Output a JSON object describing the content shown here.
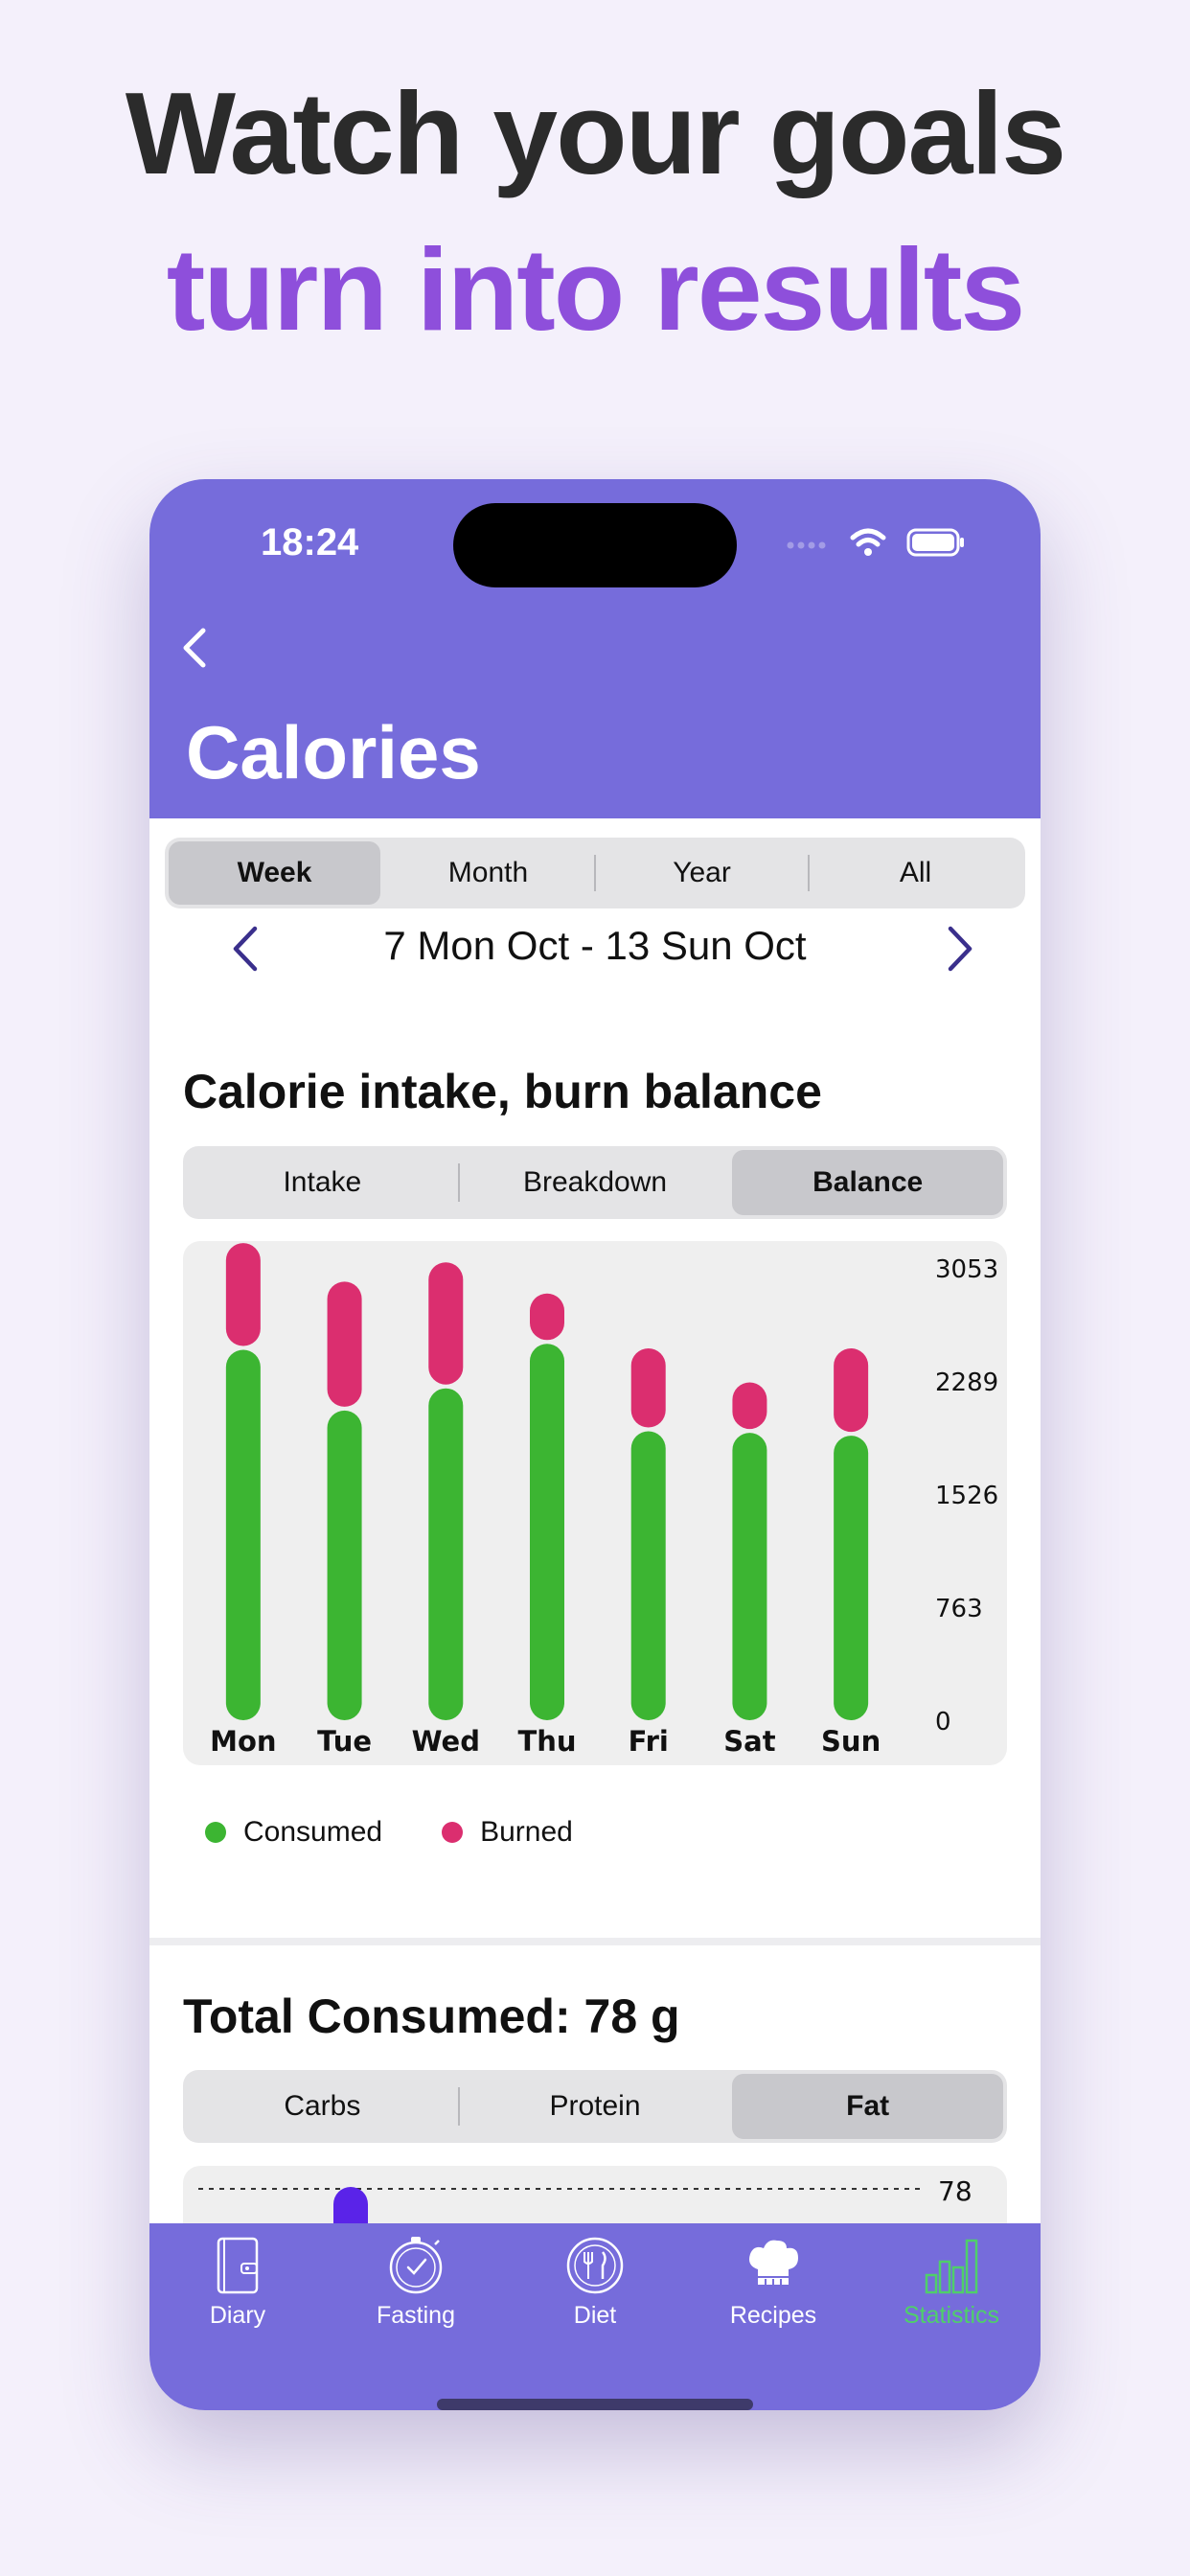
{
  "headline": {
    "line1": "Watch your goals",
    "line2": "turn into results",
    "line2_color": "#8e4fdb"
  },
  "status_bar": {
    "time": "18:24"
  },
  "header": {
    "title": "Calories",
    "background": "#766cdb"
  },
  "period_tabs": {
    "items": [
      "Week",
      "Month",
      "Year",
      "All"
    ],
    "selected": "Week"
  },
  "date_range": "7 Mon Oct - 13 Sun Oct",
  "balance_section": {
    "title": "Calorie intake, burn balance",
    "tabs": {
      "items": [
        "Intake",
        "Breakdown",
        "Balance"
      ],
      "selected": "Balance"
    }
  },
  "chart_data": {
    "type": "bar",
    "stacked": true,
    "categories": [
      "Mon",
      "Tue",
      "Wed",
      "Thu",
      "Fri",
      "Sat",
      "Sun"
    ],
    "series": [
      {
        "name": "Consumed",
        "color": "#3cb532",
        "values": [
          2500,
          2090,
          2240,
          2540,
          1950,
          1940,
          1920
        ]
      },
      {
        "name": "Burned",
        "color": "#db2e6f",
        "values": [
          720,
          870,
          850,
          340,
          560,
          340,
          590
        ]
      }
    ],
    "y_ticks": [
      "3053",
      "2289",
      "1526",
      "763",
      "0"
    ],
    "ylim": [
      0,
      3053
    ],
    "ytick_position": "right"
  },
  "legend": {
    "consumed": "Consumed",
    "burned": "Burned"
  },
  "total_section": {
    "title": "Total Consumed: 78 g",
    "tabs": {
      "items": [
        "Carbs",
        "Protein",
        "Fat"
      ],
      "selected": "Fat"
    },
    "reference_value": "78"
  },
  "tabbar": {
    "items": [
      {
        "label": "Diary",
        "icon": "diary-icon"
      },
      {
        "label": "Fasting",
        "icon": "stopwatch-icon"
      },
      {
        "label": "Diet",
        "icon": "plate-cutlery-icon"
      },
      {
        "label": "Recipes",
        "icon": "chef-hat-icon"
      },
      {
        "label": "Statistics",
        "icon": "bar-chart-icon"
      }
    ],
    "selected": "Statistics",
    "active_color": "#4fcf6a"
  }
}
